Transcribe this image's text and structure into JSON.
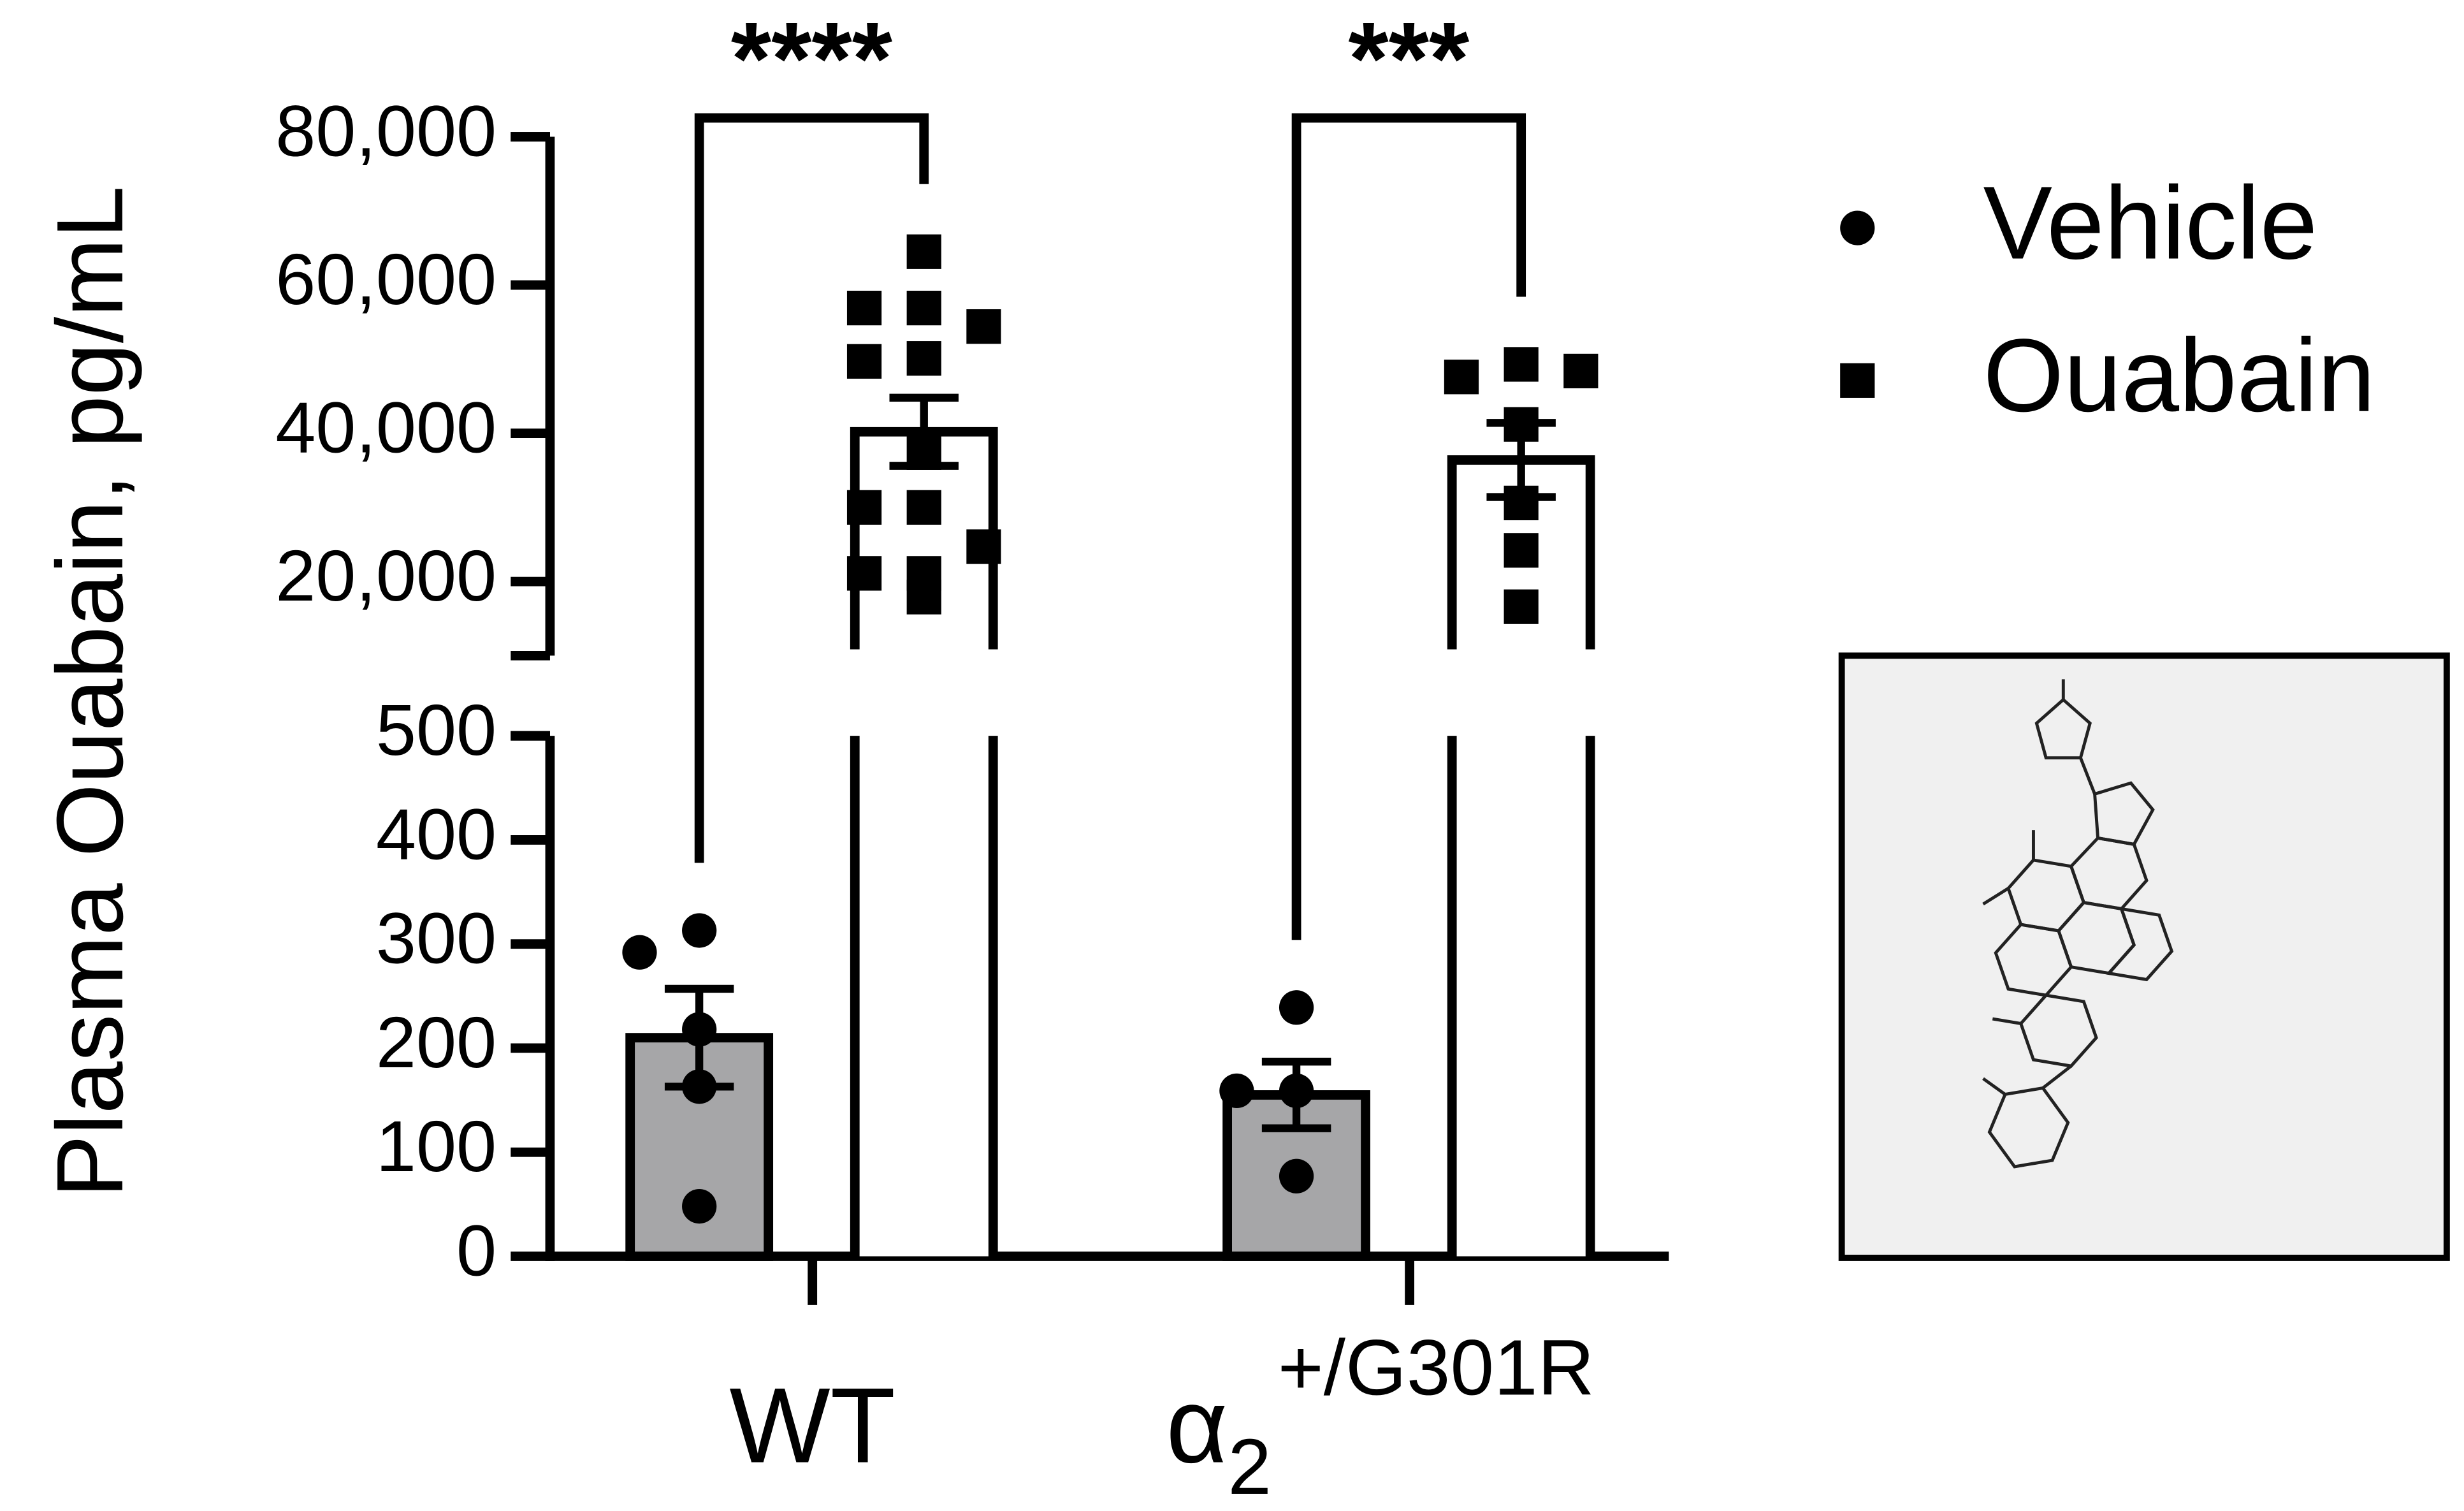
{
  "chart_data": {
    "type": "bar",
    "ylabel": "Plasma Ouabain, pg/mL",
    "categories": [
      "WT",
      {
        "text": "α",
        "sub": "2",
        "sup": "+/G301R"
      }
    ],
    "y_segments": [
      {
        "ylim": [
          0,
          500
        ],
        "yticks": [
          0,
          100,
          200,
          300,
          400,
          500
        ]
      },
      {
        "ylim": [
          10000,
          80000
        ],
        "yticks": [
          {
            "value": 20000,
            "label": "20,000"
          },
          {
            "value": 40000,
            "label": "40,000"
          },
          {
            "value": 60000,
            "label": "60,000"
          },
          {
            "value": 80000,
            "label": "80,000"
          }
        ]
      }
    ],
    "series": [
      {
        "name": "Vehicle",
        "color": "#a6a6a8",
        "marker": "circle",
        "marker_color": "#000000",
        "values": [
          210,
          155
        ],
        "errors": [
          47,
          32
        ],
        "points": [
          [
            313,
            292,
            218,
            163,
            48
          ],
          [
            239,
            159,
            159,
            77
          ]
        ]
      },
      {
        "name": "Ouabain",
        "color": "#ffffff",
        "marker": "square",
        "marker_color": "#000000",
        "values": [
          40200,
          36400
        ],
        "errors": [
          4600,
          5000
        ],
        "points": [
          [
            64500,
            56900,
            56900,
            54400,
            50100,
            49700,
            37400,
            30000,
            30000,
            24700,
            17900,
            21100,
            21100
          ],
          [
            49300,
            47600,
            48400,
            41200,
            30600,
            24200,
            16600
          ]
        ]
      }
    ],
    "significance": [
      "****",
      "***"
    ],
    "legend": "top-right"
  }
}
